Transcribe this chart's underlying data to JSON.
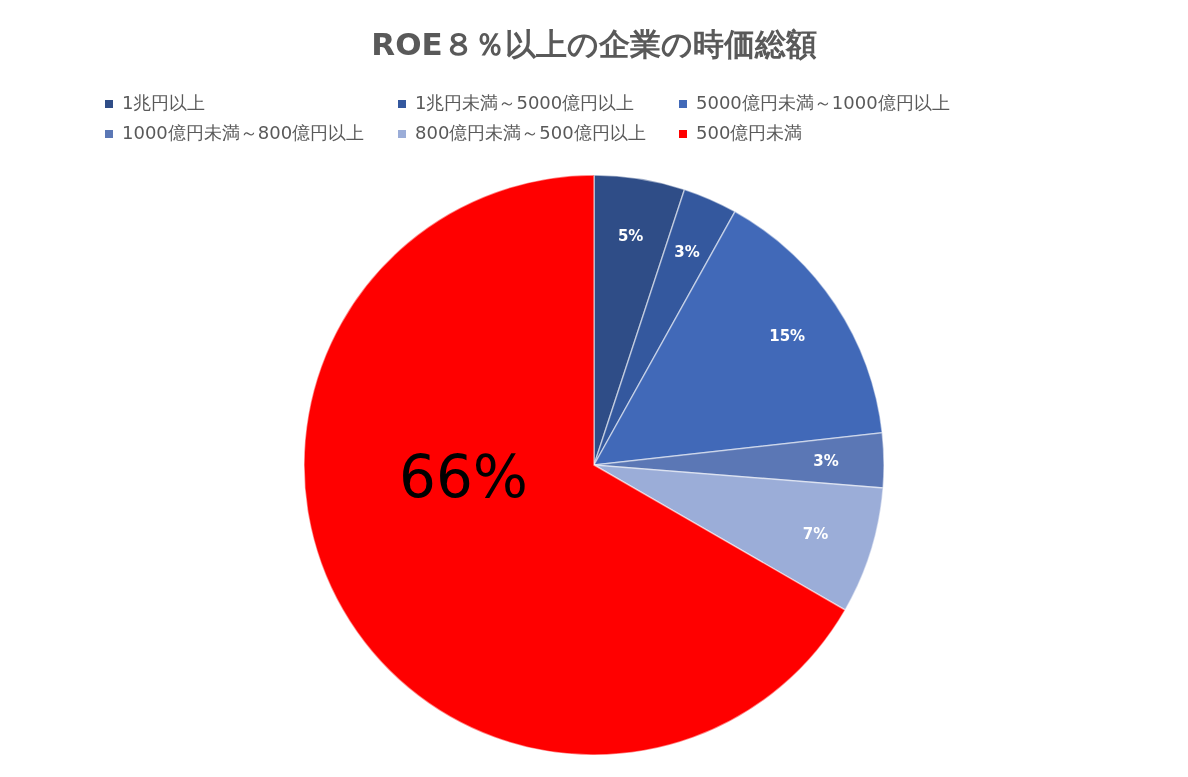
{
  "chart_data": {
    "type": "pie",
    "title": "ROE８％以上の企業の時価総額",
    "categories": [
      "1兆円以上",
      "1兆円未満～5000億円以上",
      "5000億円未満～1000億円以上",
      "1000億円未満～800億円以上",
      "800億円未満～500億円以上",
      "500億円未満"
    ],
    "values": [
      5,
      3,
      15,
      3,
      7,
      66
    ],
    "value_labels": [
      "5%",
      "3%",
      "15%",
      "3%",
      "7%",
      "66%"
    ],
    "colors": [
      "#2f4d87",
      "#34589e",
      "#4169b8",
      "#5b77b5",
      "#9badd8",
      "#ff0000"
    ],
    "legend": "top"
  }
}
